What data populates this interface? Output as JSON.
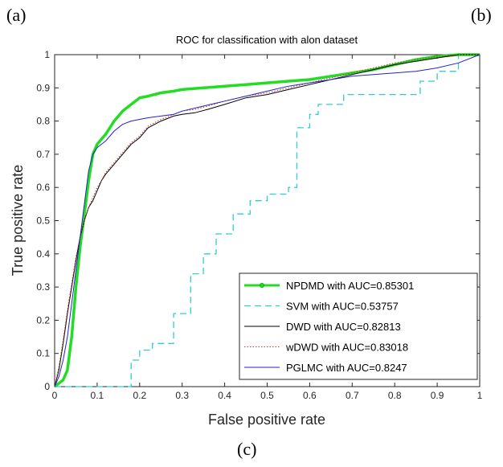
{
  "panel_labels": {
    "a": "(a)",
    "b": "(b)",
    "c": "(c)"
  },
  "chart_data": {
    "type": "line",
    "title": "ROC for classification with alon dataset",
    "xlabel": "False positive rate",
    "ylabel": "True positive rate",
    "xlim": [
      0,
      1
    ],
    "ylim": [
      0,
      1
    ],
    "xticks": [
      "0",
      "0.1",
      "0.2",
      "0.3",
      "0.4",
      "0.5",
      "0.6",
      "0.7",
      "0.8",
      "0.9",
      "1"
    ],
    "yticks": [
      "0",
      "0.1",
      "0.2",
      "0.3",
      "0.4",
      "0.5",
      "0.6",
      "0.7",
      "0.8",
      "0.9",
      "1"
    ],
    "grid": false,
    "legend_position": "bottom-right",
    "series": [
      {
        "name": "NPDMD with AUC=0.85301",
        "color": "#22dd22",
        "style": "solid-marker",
        "x": [
          0,
          0.01,
          0.02,
          0.03,
          0.04,
          0.05,
          0.06,
          0.07,
          0.08,
          0.09,
          0.1,
          0.12,
          0.14,
          0.16,
          0.18,
          0.2,
          0.22,
          0.25,
          0.28,
          0.3,
          0.35,
          0.4,
          0.45,
          0.5,
          0.55,
          0.6,
          0.65,
          0.7,
          0.75,
          0.8,
          0.85,
          0.9,
          0.95,
          1
        ],
        "y": [
          0,
          0.01,
          0.02,
          0.05,
          0.15,
          0.3,
          0.42,
          0.52,
          0.62,
          0.7,
          0.73,
          0.76,
          0.8,
          0.83,
          0.85,
          0.87,
          0.875,
          0.885,
          0.89,
          0.895,
          0.9,
          0.905,
          0.91,
          0.915,
          0.92,
          0.925,
          0.935,
          0.945,
          0.955,
          0.97,
          0.985,
          0.995,
          1,
          1
        ]
      },
      {
        "name": "SVM with AUC=0.53757",
        "color": "#33cccc",
        "style": "dashed",
        "x": [
          0,
          0.18,
          0.18,
          0.2,
          0.2,
          0.23,
          0.23,
          0.28,
          0.28,
          0.32,
          0.32,
          0.35,
          0.35,
          0.38,
          0.38,
          0.42,
          0.42,
          0.46,
          0.46,
          0.5,
          0.5,
          0.55,
          0.55,
          0.57,
          0.57,
          0.6,
          0.6,
          0.62,
          0.62,
          0.68,
          0.68,
          0.72,
          0.72,
          0.86,
          0.86,
          0.9,
          0.9,
          0.95,
          0.95,
          1
        ],
        "y": [
          0,
          0,
          0.08,
          0.08,
          0.11,
          0.11,
          0.13,
          0.13,
          0.22,
          0.22,
          0.34,
          0.34,
          0.4,
          0.4,
          0.46,
          0.46,
          0.52,
          0.52,
          0.56,
          0.56,
          0.58,
          0.58,
          0.6,
          0.6,
          0.78,
          0.78,
          0.82,
          0.82,
          0.85,
          0.85,
          0.88,
          0.88,
          0.88,
          0.88,
          0.92,
          0.92,
          0.95,
          0.95,
          1,
          1
        ]
      },
      {
        "name": "DWD with AUC=0.82813",
        "color": "#000000",
        "style": "solid",
        "x": [
          0,
          0.01,
          0.02,
          0.03,
          0.04,
          0.05,
          0.06,
          0.07,
          0.08,
          0.09,
          0.1,
          0.11,
          0.12,
          0.14,
          0.16,
          0.18,
          0.2,
          0.22,
          0.25,
          0.28,
          0.3,
          0.33,
          0.36,
          0.4,
          0.45,
          0.5,
          0.55,
          0.6,
          0.65,
          0.7,
          0.75,
          0.8,
          0.85,
          0.9,
          0.95,
          1
        ],
        "y": [
          0,
          0.05,
          0.13,
          0.22,
          0.3,
          0.38,
          0.45,
          0.5,
          0.54,
          0.56,
          0.59,
          0.62,
          0.64,
          0.67,
          0.7,
          0.73,
          0.75,
          0.78,
          0.8,
          0.815,
          0.82,
          0.825,
          0.835,
          0.85,
          0.87,
          0.88,
          0.895,
          0.91,
          0.925,
          0.94,
          0.955,
          0.97,
          0.98,
          0.99,
          1,
          1
        ]
      },
      {
        "name": "wDWD with AUC=0.83018",
        "color": "#cc3333",
        "style": "dotted",
        "x": [
          0,
          0.01,
          0.02,
          0.03,
          0.04,
          0.05,
          0.06,
          0.07,
          0.08,
          0.09,
          0.1,
          0.11,
          0.12,
          0.14,
          0.16,
          0.18,
          0.2,
          0.22,
          0.25,
          0.28,
          0.3,
          0.33,
          0.36,
          0.4,
          0.45,
          0.5,
          0.55,
          0.6,
          0.65,
          0.7,
          0.75,
          0.8,
          0.85,
          0.9,
          0.95,
          1
        ],
        "y": [
          0,
          0.06,
          0.14,
          0.23,
          0.31,
          0.39,
          0.45,
          0.5,
          0.54,
          0.57,
          0.6,
          0.62,
          0.645,
          0.675,
          0.705,
          0.735,
          0.755,
          0.785,
          0.805,
          0.82,
          0.83,
          0.835,
          0.845,
          0.86,
          0.875,
          0.885,
          0.9,
          0.915,
          0.93,
          0.945,
          0.96,
          0.975,
          0.985,
          0.995,
          1,
          1
        ]
      },
      {
        "name": "PGLMC  with AUC=0.8247",
        "color": "#2222cc",
        "style": "solid",
        "x": [
          0,
          0.01,
          0.02,
          0.03,
          0.04,
          0.05,
          0.06,
          0.07,
          0.08,
          0.09,
          0.1,
          0.11,
          0.12,
          0.14,
          0.16,
          0.18,
          0.2,
          0.22,
          0.25,
          0.28,
          0.3,
          0.35,
          0.4,
          0.45,
          0.5,
          0.55,
          0.6,
          0.65,
          0.7,
          0.75,
          0.8,
          0.85,
          0.9,
          0.95,
          1
        ],
        "y": [
          0,
          0.03,
          0.08,
          0.15,
          0.25,
          0.35,
          0.45,
          0.55,
          0.65,
          0.7,
          0.72,
          0.73,
          0.74,
          0.77,
          0.79,
          0.8,
          0.805,
          0.81,
          0.815,
          0.82,
          0.83,
          0.845,
          0.86,
          0.875,
          0.89,
          0.905,
          0.915,
          0.925,
          0.935,
          0.94,
          0.945,
          0.95,
          0.96,
          0.975,
          1
        ]
      }
    ]
  }
}
